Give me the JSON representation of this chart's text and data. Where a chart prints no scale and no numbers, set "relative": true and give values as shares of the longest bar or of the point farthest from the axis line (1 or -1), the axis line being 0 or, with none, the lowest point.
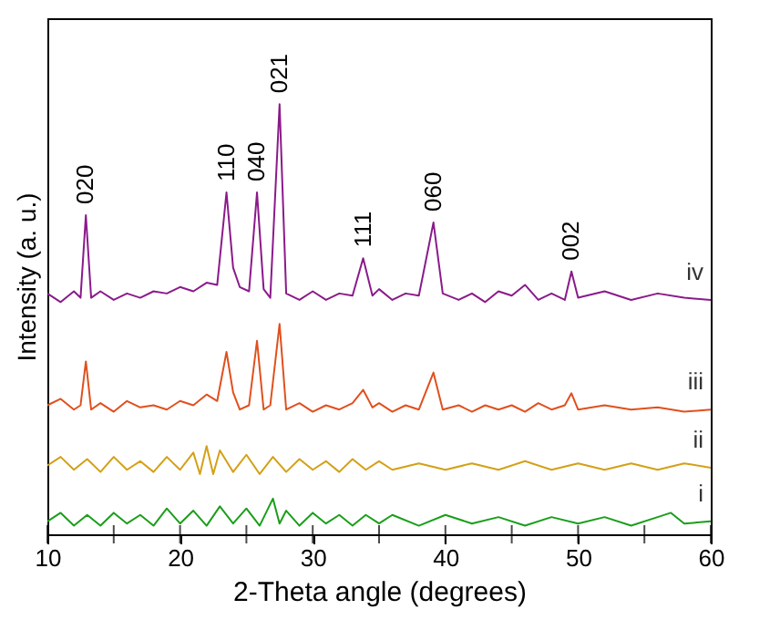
{
  "chart_data": {
    "type": "line",
    "relative": true,
    "xlabel": "2-Theta angle (degrees)",
    "ylabel": "Intensity (a. u.)",
    "xlim": [
      10,
      60
    ],
    "xticks": [
      10,
      {
        "value": 15,
        "label": null
      },
      20,
      {
        "value": 25,
        "label": null
      },
      30,
      {
        "value": 35,
        "label": null
      },
      40,
      {
        "value": 45,
        "label": null
      },
      50,
      {
        "value": 55,
        "label": null
      },
      60
    ],
    "tick_labels": "x",
    "grid": false,
    "marker": "none",
    "line_style": "solid",
    "annotations": [
      {
        "text": "020",
        "x": 12.9,
        "y": 0.742
      },
      {
        "text": "110",
        "x": 23.5,
        "y": 0.795
      },
      {
        "text": "040",
        "x": 25.8,
        "y": 0.795
      },
      {
        "text": "021",
        "x": 27.5,
        "y": 1.0
      },
      {
        "text": "111",
        "x": 33.8,
        "y": 0.642
      },
      {
        "text": "060",
        "x": 39.1,
        "y": 0.725
      },
      {
        "text": "002",
        "x": 49.5,
        "y": 0.611
      }
    ],
    "series": [
      {
        "name": "iv",
        "color": "#8b1a8b",
        "x": [
          10,
          11,
          12,
          12.5,
          12.9,
          13.3,
          14,
          15,
          16,
          17,
          18,
          19,
          20,
          21,
          22,
          22.8,
          23.5,
          24,
          24.5,
          25.2,
          25.8,
          26.3,
          26.8,
          27.5,
          28,
          29,
          30,
          31,
          32,
          33,
          33.8,
          34.5,
          35,
          36,
          37,
          38,
          39.1,
          39.8,
          41,
          42,
          43,
          44,
          45,
          46,
          47,
          48,
          49,
          49.5,
          50,
          52,
          54,
          56,
          58,
          60
        ],
        "values": [
          0.56,
          0.54,
          0.565,
          0.55,
          0.742,
          0.55,
          0.565,
          0.545,
          0.56,
          0.55,
          0.565,
          0.56,
          0.575,
          0.565,
          0.585,
          0.58,
          0.795,
          0.62,
          0.575,
          0.565,
          0.795,
          0.57,
          0.55,
          1.0,
          0.56,
          0.545,
          0.565,
          0.545,
          0.56,
          0.555,
          0.642,
          0.555,
          0.57,
          0.545,
          0.56,
          0.555,
          0.725,
          0.56,
          0.545,
          0.56,
          0.54,
          0.565,
          0.555,
          0.58,
          0.545,
          0.56,
          0.545,
          0.611,
          0.55,
          0.565,
          0.545,
          0.56,
          0.55,
          0.545
        ]
      },
      {
        "name": "iii",
        "color": "#e0501e",
        "x": [
          10,
          11,
          12,
          12.5,
          12.9,
          13.3,
          14,
          15,
          16,
          17,
          18,
          19,
          20,
          21,
          22,
          22.8,
          23.5,
          24,
          24.5,
          25.2,
          25.8,
          26.3,
          26.8,
          27.5,
          28,
          29,
          30,
          31,
          32,
          33,
          33.8,
          34.5,
          35,
          36,
          37,
          38,
          39.1,
          39.8,
          41,
          42,
          43,
          44,
          45,
          46,
          47,
          48,
          49,
          49.5,
          50,
          52,
          54,
          56,
          58,
          60
        ],
        "values": [
          0.3,
          0.315,
          0.29,
          0.3,
          0.402,
          0.29,
          0.305,
          0.285,
          0.31,
          0.295,
          0.3,
          0.29,
          0.31,
          0.3,
          0.325,
          0.31,
          0.424,
          0.33,
          0.29,
          0.3,
          0.45,
          0.29,
          0.3,
          0.489,
          0.29,
          0.305,
          0.285,
          0.3,
          0.29,
          0.305,
          0.336,
          0.295,
          0.305,
          0.285,
          0.3,
          0.29,
          0.376,
          0.29,
          0.3,
          0.285,
          0.3,
          0.29,
          0.3,
          0.285,
          0.305,
          0.29,
          0.3,
          0.328,
          0.29,
          0.3,
          0.29,
          0.295,
          0.285,
          0.29
        ]
      },
      {
        "name": "ii",
        "color": "#d4a017",
        "x": [
          10,
          11,
          12,
          13,
          14,
          15,
          16,
          17,
          18,
          19,
          20,
          21,
          21.5,
          22,
          22.5,
          23,
          24,
          25,
          26,
          27,
          28,
          29,
          30,
          31,
          32,
          33,
          34,
          35,
          36,
          38,
          40,
          42,
          44,
          46,
          48,
          50,
          52,
          54,
          56,
          58,
          60
        ],
        "values": [
          0.16,
          0.18,
          0.15,
          0.175,
          0.145,
          0.18,
          0.15,
          0.17,
          0.145,
          0.18,
          0.15,
          0.19,
          0.14,
          0.205,
          0.14,
          0.195,
          0.145,
          0.185,
          0.14,
          0.18,
          0.145,
          0.175,
          0.15,
          0.17,
          0.145,
          0.175,
          0.15,
          0.17,
          0.15,
          0.165,
          0.15,
          0.165,
          0.15,
          0.17,
          0.15,
          0.165,
          0.15,
          0.165,
          0.15,
          0.165,
          0.155
        ]
      },
      {
        "name": "i",
        "color": "#1a9e1a",
        "x": [
          10,
          11,
          12,
          13,
          14,
          15,
          16,
          17,
          18,
          19,
          20,
          21,
          22,
          23,
          24,
          25,
          26,
          27,
          27.5,
          28,
          29,
          30,
          31,
          32,
          33,
          34,
          35,
          36,
          38,
          40,
          42,
          44,
          46,
          48,
          50,
          52,
          54,
          56,
          57,
          58,
          60
        ],
        "values": [
          0.03,
          0.05,
          0.02,
          0.045,
          0.02,
          0.05,
          0.025,
          0.045,
          0.02,
          0.06,
          0.025,
          0.055,
          0.02,
          0.065,
          0.025,
          0.06,
          0.02,
          0.083,
          0.025,
          0.055,
          0.02,
          0.05,
          0.025,
          0.045,
          0.02,
          0.045,
          0.025,
          0.045,
          0.02,
          0.045,
          0.025,
          0.04,
          0.02,
          0.04,
          0.025,
          0.04,
          0.02,
          0.04,
          0.05,
          0.025,
          0.03
        ]
      }
    ]
  }
}
